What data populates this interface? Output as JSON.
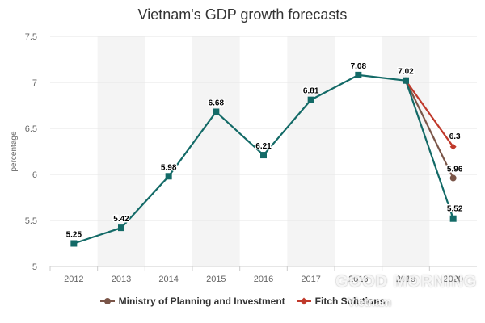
{
  "chart_data": {
    "type": "line",
    "title": "Vietnam's GDP growth forecasts",
    "ylabel": "percentage",
    "xlabel": "",
    "ylim": [
      5,
      7.5
    ],
    "yticks": [
      5,
      5.5,
      6,
      6.5,
      7,
      7.5
    ],
    "ytick_labels": [
      "5",
      "5.5",
      "6",
      "6.5",
      "7",
      "7.5"
    ],
    "categories": [
      "2012",
      "2013",
      "2014",
      "2015",
      "2016",
      "2017",
      "2018",
      "2019",
      "2020"
    ],
    "grid": true,
    "legend_position": "bottom",
    "series": [
      {
        "name": "Ministry of Planning and Investment",
        "color": "#7a5548",
        "marker": "circle",
        "values": [
          null,
          null,
          null,
          null,
          null,
          null,
          null,
          7.02,
          5.96
        ]
      },
      {
        "name": "Fitch Solutions",
        "color": "#c0392b",
        "marker": "diamond",
        "values": [
          null,
          null,
          null,
          null,
          null,
          null,
          null,
          7.02,
          6.3
        ]
      },
      {
        "name": "",
        "color": "#136a67",
        "marker": "square",
        "values": [
          5.25,
          5.42,
          5.98,
          6.68,
          6.21,
          6.81,
          7.08,
          7.02,
          5.52
        ]
      }
    ],
    "data_labels": [
      {
        "category": "2012",
        "text": "5.25"
      },
      {
        "category": "2013",
        "text": "5.42"
      },
      {
        "category": "2014",
        "text": "5.98"
      },
      {
        "category": "2015",
        "text": "6.68"
      },
      {
        "category": "2016",
        "text": "6.21"
      },
      {
        "category": "2017",
        "text": "6.81"
      },
      {
        "category": "2018",
        "text": "7.08"
      },
      {
        "category": "2019",
        "text": "7.02"
      },
      {
        "category": "2020",
        "text": "6.3"
      },
      {
        "category": "2020",
        "text": "5.96"
      },
      {
        "category": "2020",
        "text": "5.52"
      }
    ]
  },
  "legend": {
    "items": [
      {
        "label": "Ministry of Planning and Investment",
        "color": "#7a5548",
        "marker": "circle"
      },
      {
        "label": "Fitch Solutions",
        "color": "#c0392b",
        "marker": "diamond"
      }
    ]
  },
  "watermark": {
    "text": "GOOD MORNING",
    "sub": "Vietnam"
  }
}
